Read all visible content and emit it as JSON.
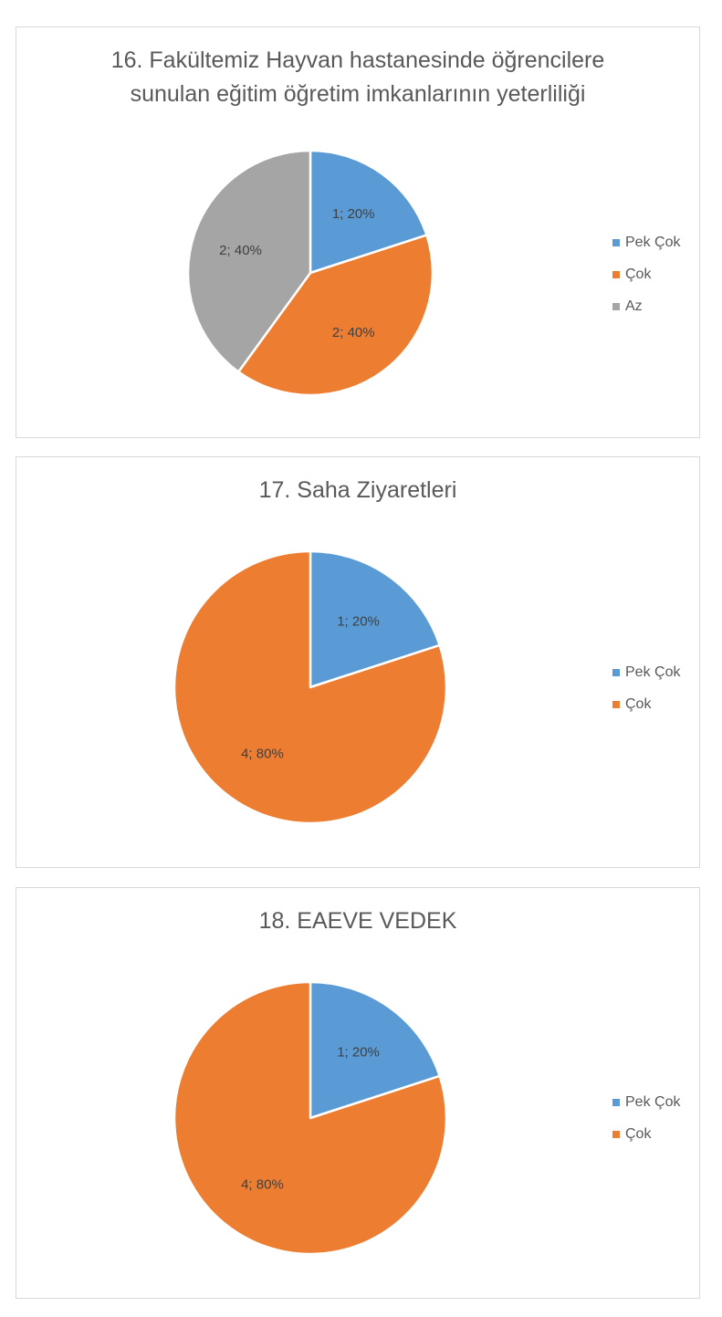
{
  "colors": {
    "pek_cok": "#5b9bd5",
    "cok": "#ed7d31",
    "az": "#a5a5a5",
    "border": "#d9d9d9",
    "text": "#595959"
  },
  "chart_data": [
    {
      "type": "pie",
      "title_lines": [
        "16. Fakültemiz Hayvan hastanesinde öğrencilere",
        "sunulan eğitim öğretim imkanlarının yeterliliği"
      ],
      "categories": [
        "Pek Çok",
        "Çok",
        "Az"
      ],
      "values": [
        1,
        2,
        2
      ],
      "labels": [
        "1; 20%",
        "2; 40%",
        "2; 40%"
      ],
      "colors": [
        "#5b9bd5",
        "#ed7d31",
        "#a5a5a5"
      ],
      "legend_position": "right"
    },
    {
      "type": "pie",
      "title_lines": [
        "17. Saha Ziyaretleri"
      ],
      "categories": [
        "Pek Çok",
        "Çok"
      ],
      "values": [
        1,
        4
      ],
      "labels": [
        "1; 20%",
        "4; 80%"
      ],
      "colors": [
        "#5b9bd5",
        "#ed7d31"
      ],
      "legend_position": "right"
    },
    {
      "type": "pie",
      "title_lines": [
        "18. EAEVE VEDEK"
      ],
      "categories": [
        "Pek Çok",
        "Çok"
      ],
      "values": [
        1,
        4
      ],
      "labels": [
        "1; 20%",
        "4; 80%"
      ],
      "colors": [
        "#5b9bd5",
        "#ed7d31"
      ],
      "legend_position": "right"
    }
  ]
}
